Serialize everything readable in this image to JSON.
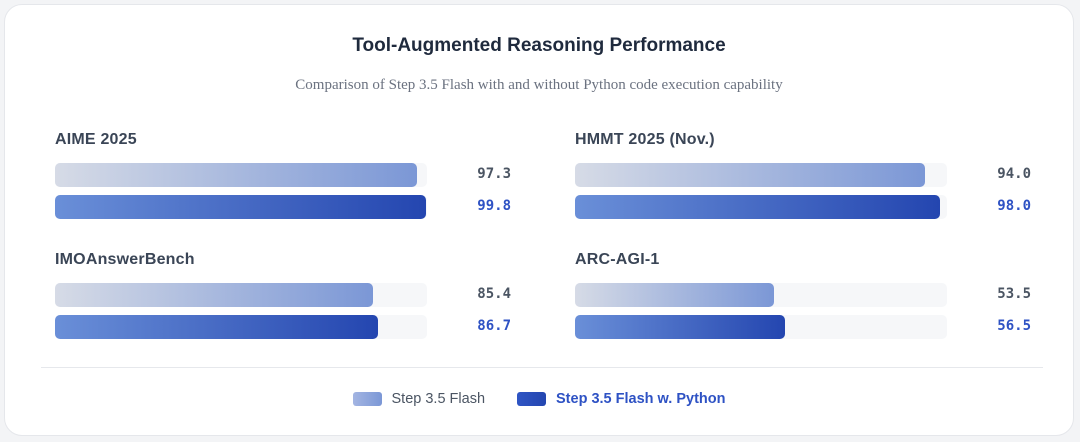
{
  "chart_data": {
    "type": "bar",
    "orientation": "horizontal",
    "title": "Tool-Augmented Reasoning Performance",
    "subtitle": "Comparison of Step 3.5 Flash with and without Python code execution capability",
    "xlim": [
      0,
      100
    ],
    "grid": false,
    "legend_placement": "bottom-center",
    "categories": [
      "AIME 2025",
      "HMMT 2025 (Nov.)",
      "IMOAnswerBench",
      "ARC-AGI-1"
    ],
    "series": [
      {
        "name": "Step 3.5 Flash",
        "values": [
          97.3,
          94.0,
          85.4,
          53.5
        ],
        "labels": [
          "97.3",
          "94.0",
          "85.4",
          "53.5"
        ],
        "color": "#7b97d6"
      },
      {
        "name": "Step 3.5 Flash w. Python",
        "values": [
          99.8,
          98.0,
          86.7,
          56.5
        ],
        "labels": [
          "99.8",
          "98.0",
          "86.7",
          "56.5"
        ],
        "color": "#2446b0"
      }
    ]
  },
  "colors": {
    "base_start": "#d6dbe6",
    "base_end": "#7b97d6",
    "py_start": "#6a8fd8",
    "py_end": "#2446b0",
    "py_text": "#2e52c4"
  }
}
